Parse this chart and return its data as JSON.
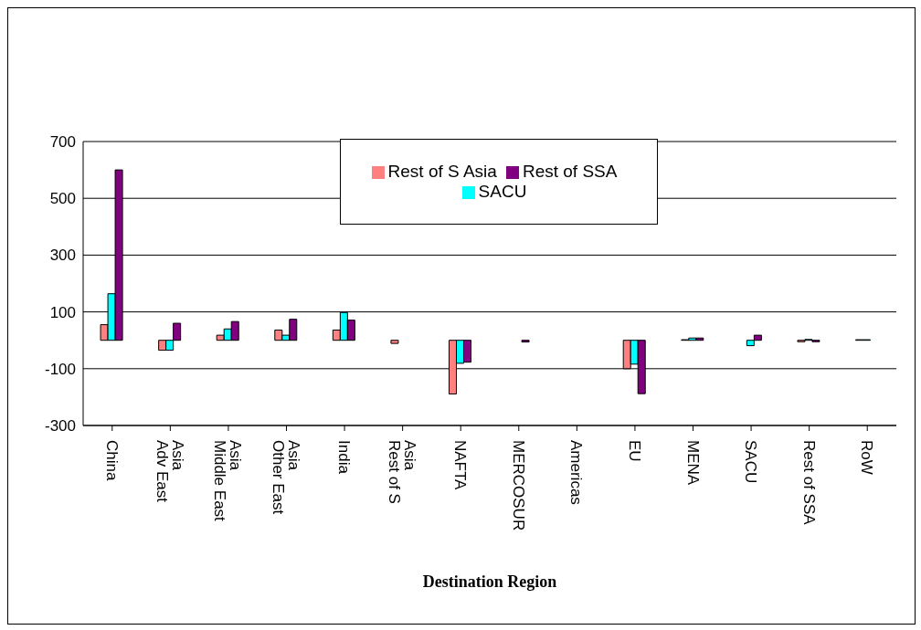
{
  "chart_data": {
    "type": "bar",
    "xlabel": "Destination Region",
    "categories": [
      "China",
      "Adv East Asia",
      "Middle East Asia",
      "Other East Asia",
      "India",
      "Rest of S Asia",
      "NAFTA",
      "MERCOSUR",
      "Americas",
      "EU",
      "MENA",
      "SACU",
      "Rest of SSA",
      "RoW"
    ],
    "series": [
      {
        "name": "Rest of S Asia",
        "color": "#ff8080",
        "values": [
          55,
          -35,
          18,
          36,
          36,
          -11,
          -189,
          0,
          0,
          -100,
          2,
          0,
          -5,
          2
        ]
      },
      {
        "name": "SACU",
        "color": "#00ffff",
        "values": [
          164,
          -35,
          40,
          18,
          98,
          0,
          -81,
          0,
          0,
          -84,
          8,
          -19,
          3,
          2
        ]
      },
      {
        "name": "Rest of SSA",
        "color": "#800080",
        "values": [
          600,
          60,
          66,
          74,
          71,
          0,
          -77,
          -6,
          0,
          -188,
          8,
          18,
          -5,
          0
        ]
      }
    ],
    "ylim": [
      -300,
      700
    ],
    "yticks": [
      -300,
      -100,
      100,
      300,
      500,
      700
    ],
    "grid": "y",
    "legend": "top"
  }
}
